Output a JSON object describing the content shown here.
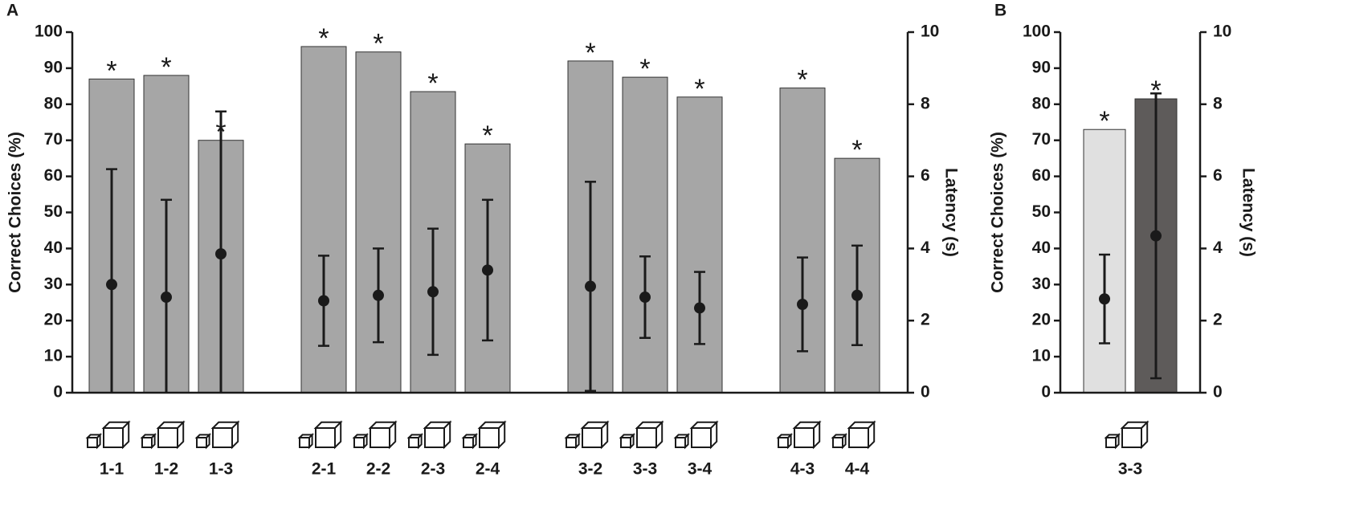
{
  "chart_data": [
    {
      "type": "bar",
      "label": "A",
      "ylabel": "Correct Choices (%)",
      "y2label": "Latency (s)",
      "categories": [
        "1-1",
        "1-2",
        "1-3",
        "2-1",
        "2-2",
        "2-3",
        "2-4",
        "3-2",
        "3-3",
        "3-4",
        "4-3",
        "4-4"
      ],
      "series": [
        {
          "color": "#a6a6a6",
          "values": [
            87,
            88,
            70,
            96,
            94.5,
            83.5,
            69,
            92,
            87.5,
            82,
            84.5,
            65
          ],
          "annotations": [
            "*",
            "*",
            "*",
            "*",
            "*",
            "*",
            "*",
            "*",
            "*",
            "*",
            "*",
            "*"
          ]
        },
        {
          "axis": "y2",
          "color": "#1a1a1a",
          "values": [
            3.0,
            2.65,
            3.85,
            2.55,
            2.7,
            2.8,
            3.4,
            2.95,
            2.65,
            2.35,
            2.45,
            2.7
          ],
          "errors": [
            3.2,
            2.7,
            3.95,
            1.25,
            1.3,
            1.75,
            1.95,
            2.9,
            1.13,
            1.0,
            1.3,
            1.38
          ]
        }
      ],
      "ylim": [
        0,
        100
      ],
      "yticks": [
        0,
        10,
        20,
        30,
        40,
        50,
        60,
        70,
        80,
        90,
        100
      ],
      "y2lim": [
        0,
        10
      ],
      "y2ticks": [
        0,
        2,
        4,
        6,
        8,
        10
      ]
    },
    {
      "type": "bar",
      "label": "B",
      "ylabel": "Correct Choices (%)",
      "y2label": "Latency (s)",
      "categories": [
        "3-3"
      ],
      "series": [
        {
          "color": "#e0e0e0",
          "values": [
            73
          ],
          "annotations": [
            "*"
          ]
        },
        {
          "color": "#5e5b5a",
          "values": [
            81.5
          ],
          "annotations": [
            "*"
          ]
        },
        {
          "axis": "y2",
          "color": "#1a1a1a",
          "values": [
            2.6
          ],
          "errors": [
            1.23
          ]
        },
        {
          "axis": "y2",
          "color": "#1a1a1a",
          "values": [
            4.35
          ],
          "errors": [
            3.95
          ]
        }
      ],
      "ylim": [
        0,
        100
      ],
      "yticks": [
        0,
        10,
        20,
        30,
        40,
        50,
        60,
        70,
        80,
        90,
        100
      ],
      "y2lim": [
        0,
        10
      ],
      "y2ticks": [
        0,
        2,
        4,
        6,
        8,
        10
      ]
    }
  ]
}
